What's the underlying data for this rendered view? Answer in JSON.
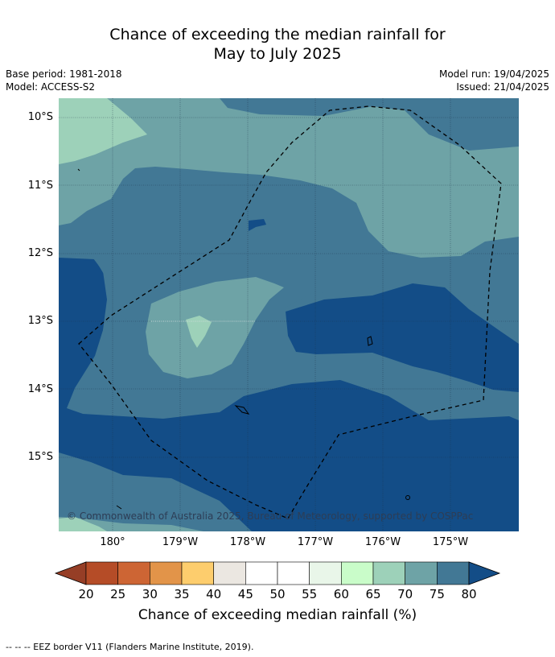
{
  "title_line1": "Chance of exceeding the median rainfall for",
  "title_line2": "May to July 2025",
  "meta": {
    "base_period": "Base period: 1981-2018",
    "model": "Model: ACCESS-S2",
    "model_run": "Model run: 19/04/2025",
    "issued": "Issued: 21/04/2025"
  },
  "map": {
    "copyright": "© Commonwealth of Australia 2025, Bureau of Meteorology, supported by COSPPac",
    "lat_labels": [
      "10°S",
      "11°S",
      "12°S",
      "13°S",
      "14°S",
      "15°S"
    ],
    "lon_labels": [
      "180°",
      "179°W",
      "178°W",
      "177°W",
      "176°W",
      "175°W"
    ],
    "colors": {
      "c60_65": "#9dd1b9",
      "c65_70": "#6ea3a6",
      "c70_75": "#427895",
      "c75_80": "#134d87",
      "coast": "#000000"
    }
  },
  "colorbar": {
    "ticks": [
      "20",
      "25",
      "30",
      "35",
      "40",
      "45",
      "50",
      "55",
      "60",
      "65",
      "70",
      "75",
      "80"
    ],
    "colors": [
      "#b54c27",
      "#cd6534",
      "#e29449",
      "#fdcd6d",
      "#ebe7e1",
      "#ffffff",
      "#ffffff",
      "#e9f6e9",
      "#c9fcc9",
      "#9dd1b9",
      "#6ea3a6",
      "#427895"
    ],
    "under_color": "#963e26",
    "over_color": "#134d87",
    "label": "Chance of exceeding median rainfall (%)"
  },
  "footnote": "--  --  -- EEZ border V11 (Flanders Marine Institute, 2019)."
}
